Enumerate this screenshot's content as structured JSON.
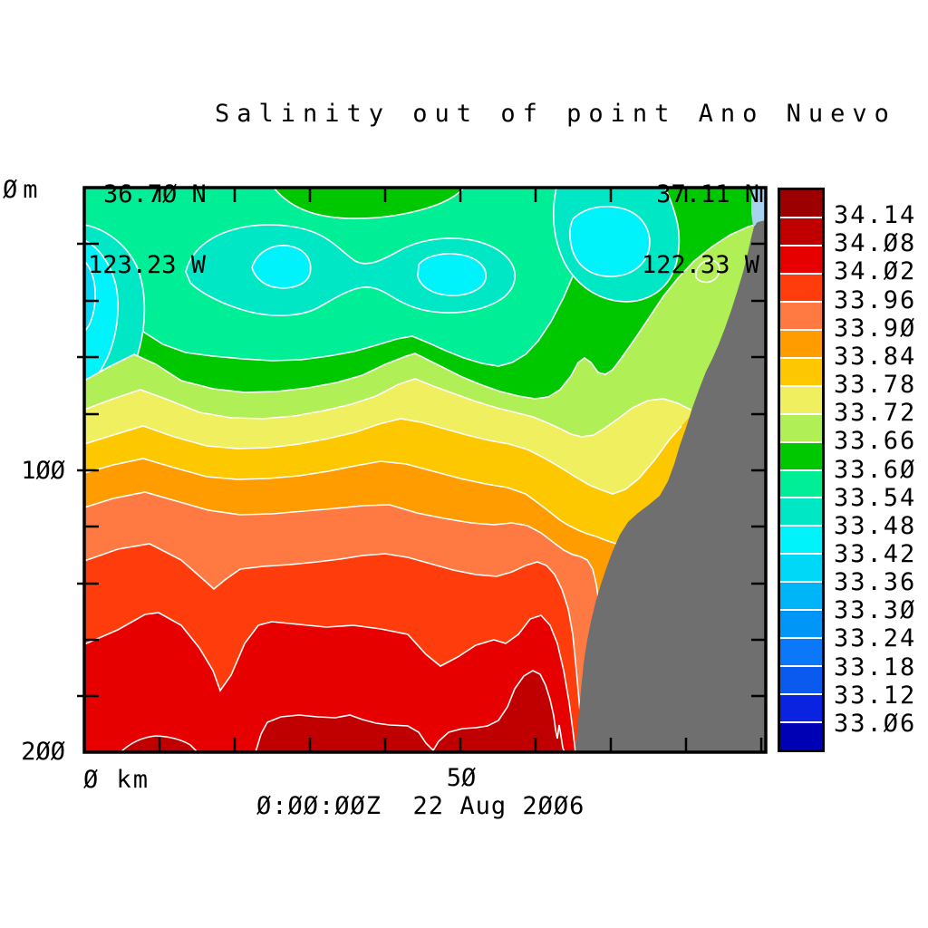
{
  "header": {
    "title": "Salinity out of point Ano Nuevo",
    "start": {
      "lat": "36.70 N",
      "lon": "123.23 W"
    },
    "end": {
      "lat": "37.11 N",
      "lon": "122.33 W"
    }
  },
  "axes": {
    "y": {
      "top_label": "0m",
      "mid_label": "100",
      "bottom_label": "200"
    },
    "x": {
      "origin_label": "0 km",
      "mid_label": "50"
    },
    "timestamp": "0:00:00Z  22 Aug 2006"
  },
  "colorbar": {
    "labels": [
      "34.14",
      "34.08",
      "34.02",
      "33.96",
      "33.90",
      "33.84",
      "33.78",
      "33.72",
      "33.66",
      "33.60",
      "33.54",
      "33.48",
      "33.42",
      "33.36",
      "33.30",
      "33.24",
      "33.18",
      "33.12",
      "33.06"
    ],
    "colors": [
      "#9c0000",
      "#c00000",
      "#e60000",
      "#ff3c0c",
      "#ff7a42",
      "#ff9c00",
      "#fdc800",
      "#efef60",
      "#b0ef55",
      "#00c800",
      "#00ef96",
      "#00e7c5",
      "#00f2fa",
      "#00d8f8",
      "#00b4f8",
      "#0096f8",
      "#0a78f8",
      "#0a5af0",
      "#0a23e0",
      "#0000b4"
    ]
  },
  "chart_data": {
    "type": "heatmap",
    "subtype": "filled-contour-ocean-section",
    "title": "Salinity out of point Ano Nuevo",
    "time": "0:00:00Z  22 Aug 2006",
    "section_start": {
      "lat_label": "36.70 N",
      "lon_label": "123.23 W"
    },
    "section_end": {
      "lat_label": "37.11 N",
      "lon_label": "122.33 W"
    },
    "x_axis": {
      "label": "km",
      "range": [
        0,
        93
      ],
      "tick_interval_km": 10,
      "labeled_ticks": [
        "0 km",
        "50"
      ]
    },
    "y_axis": {
      "label": "m (depth)",
      "range": [
        0,
        200
      ],
      "tick_interval_m": 20,
      "labeled_ticks": [
        "0m",
        "100",
        "200"
      ]
    },
    "contour_levels": [
      33.06,
      33.12,
      33.18,
      33.24,
      33.3,
      33.36,
      33.42,
      33.48,
      33.54,
      33.6,
      33.66,
      33.72,
      33.78,
      33.84,
      33.9,
      33.96,
      34.02,
      34.08,
      34.14
    ],
    "level_step": 0.06,
    "palette_low_to_high": [
      "#0000b4",
      "#0a23e0",
      "#0a5af0",
      "#0a78f8",
      "#0096f8",
      "#00b4f8",
      "#00d8f8",
      "#00f2fa",
      "#00e7c5",
      "#00ef96",
      "#00c800",
      "#b0ef55",
      "#efef60",
      "#fdc800",
      "#ff9c00",
      "#ff7a42",
      "#ff3c0c",
      "#e60000",
      "#c00000",
      "#9c0000"
    ],
    "contour_line_color": "#ffffff",
    "bathymetry_mask_color": "#6f6f6f",
    "coastal_surface_gap_color": "#a8d2f0",
    "bathymetry": "gray seafloor wedge on right: from ~65 km at 200 m depth rising to the surface near ~90 km (coast)",
    "surface_layer": "upper ~60 m is 33.42-33.60, with cyclonic low-salinity eddies (33.36-33.48 cores) near 0-5 km, 15-40 km, and 64-78 km",
    "approx_isohaline_depths_m": {
      "at_0km": {
        "33.60": 56,
        "33.66": 68,
        "33.72": 79,
        "33.78": 91,
        "33.84": 101,
        "33.90": 113,
        "33.96": 133,
        "34.02": 162
      },
      "at_45km": {
        "33.66": 59,
        "33.72": 68,
        "33.78": 82,
        "33.84": 97,
        "33.90": 115,
        "33.96": 133,
        "34.02": 155,
        "34.08": 187
      }
    },
    "max_salinity_band": "34.08-34.14 along the bottom between ~25 and ~65 km",
    "grid": false,
    "legend_position": "colorbar right"
  }
}
